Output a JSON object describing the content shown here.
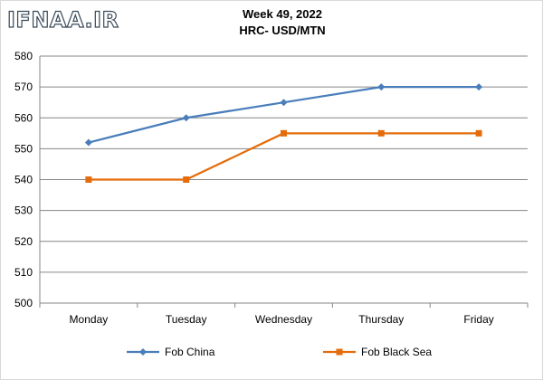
{
  "watermark": "IFNAA.IR",
  "chart_data": {
    "type": "line",
    "title": "Week 49, 2022",
    "subtitle": "HRC- USD/MTN",
    "categories": [
      "Monday",
      "Tuesday",
      "Wednesday",
      "Thursday",
      "Friday"
    ],
    "series": [
      {
        "name": "Fob China",
        "values": [
          552,
          560,
          565,
          570,
          570
        ],
        "color": "#4a7ebb",
        "marker": "diamond"
      },
      {
        "name": "Fob Black Sea",
        "values": [
          540,
          540,
          555,
          555,
          555
        ],
        "color": "#e46c0a",
        "marker": "square"
      }
    ],
    "ylim": [
      500,
      580
    ],
    "yticks": [
      500,
      510,
      520,
      530,
      540,
      550,
      560,
      570,
      580
    ],
    "grid": true,
    "legend": "bottom"
  }
}
